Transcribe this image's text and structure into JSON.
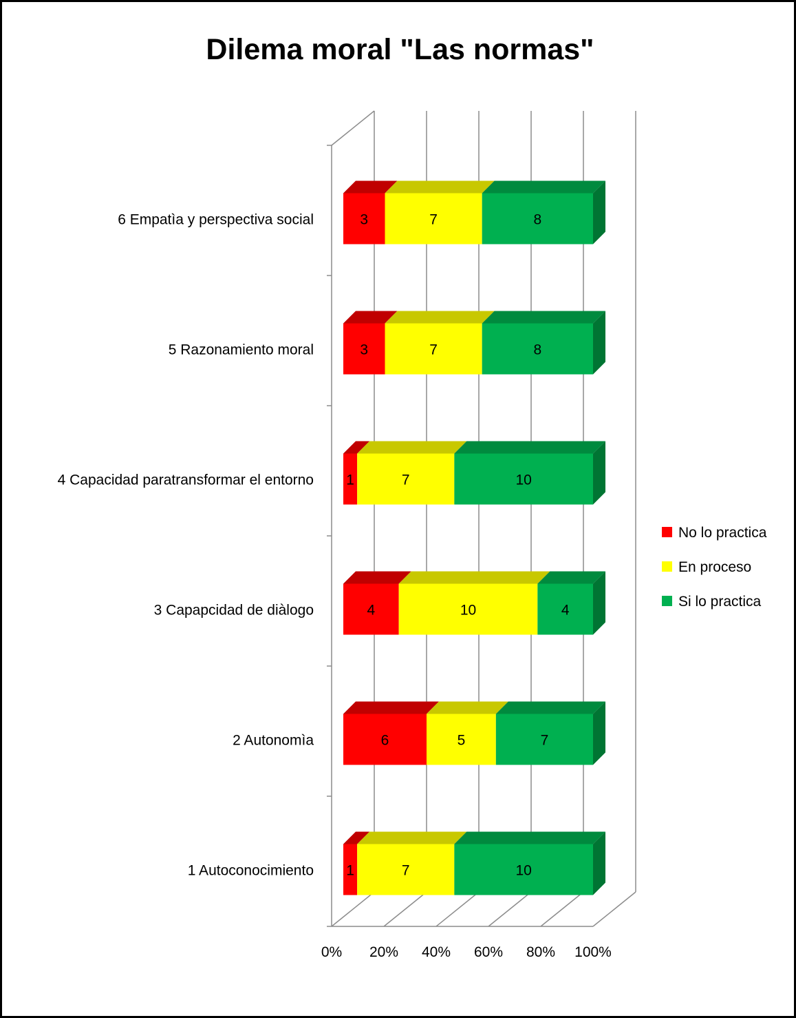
{
  "chart_data": {
    "type": "bar",
    "orientation": "horizontal",
    "stacking": "percent",
    "style": "3d",
    "title": "Dilema moral \"Las normas\"",
    "categories": [
      "1 Autoconocimiento",
      "2 Autonomìa",
      "3 Capapcidad de diàlogo",
      "4 Capacidad paratransformar el entorno",
      "5 Razonamiento moral",
      "6 Empatìa y perspectiva social"
    ],
    "series": [
      {
        "name": "No lo practica",
        "values": [
          1,
          6,
          4,
          1,
          3,
          3
        ],
        "color": "#ff0000",
        "top_color": "#c00000",
        "side_color": "#a00000"
      },
      {
        "name": "En proceso",
        "values": [
          7,
          5,
          10,
          7,
          7,
          7
        ],
        "color": "#ffff00",
        "top_color": "#c8c800",
        "side_color": "#a8a800"
      },
      {
        "name": "Si lo practica",
        "values": [
          10,
          7,
          4,
          10,
          8,
          8
        ],
        "color": "#00b050",
        "top_color": "#008a3e",
        "side_color": "#007533"
      }
    ],
    "x_ticks": [
      "0%",
      "20%",
      "40%",
      "60%",
      "80%",
      "100%"
    ],
    "xlim": [
      0,
      100
    ],
    "grid": true,
    "legend_position": "right"
  }
}
